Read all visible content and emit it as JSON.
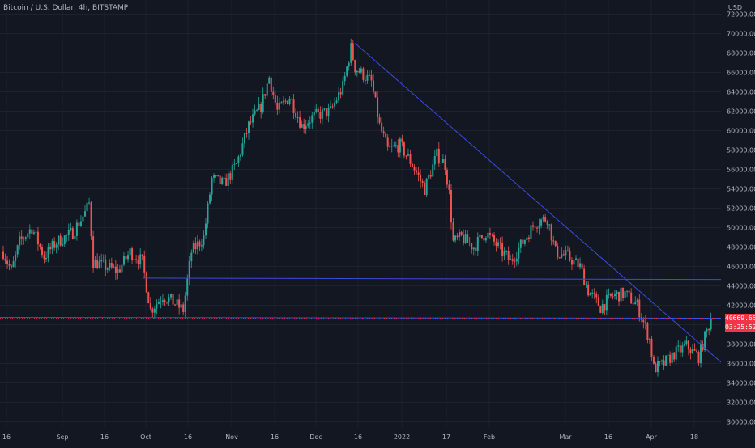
{
  "header": {
    "title": "Bitcoin / U.S. Dollar, 4h, BITSTAMP",
    "currency": "USD"
  },
  "last_price": {
    "value": "40669.65",
    "countdown": "03:25:52"
  },
  "chart_data": {
    "type": "candlestick",
    "title": "Bitcoin / U.S. Dollar, 4h, BITSTAMP",
    "xlabel": "",
    "ylabel": "",
    "ylim": [
      29500,
      72500
    ],
    "y_ticks": [
      "30000.00",
      "32000.00",
      "34000.00",
      "36000.00",
      "38000.00",
      "40000.00",
      "42000.00",
      "44000.00",
      "46000.00",
      "48000.00",
      "50000.00",
      "52000.00",
      "54000.00",
      "56000.00",
      "58000.00",
      "60000.00",
      "62000.00",
      "64000.00",
      "66000.00",
      "68000.00",
      "70000.00",
      "72000.00"
    ],
    "x_ticks": [
      "16",
      "Sep",
      "16",
      "Oct",
      "16",
      "Nov",
      "16",
      "Dec",
      "16",
      "2022",
      "17",
      "Feb",
      "Mar",
      "16",
      "Apr",
      "18"
    ],
    "price_path": [
      [
        "Aug 16",
        47500
      ],
      [
        "Aug 18",
        45500
      ],
      [
        "Aug 20",
        48500
      ],
      [
        "Aug 23",
        50000
      ],
      [
        "Aug 26",
        47000
      ],
      [
        "Aug 29",
        48500
      ],
      [
        "Sep 2",
        49500
      ],
      [
        "Sep 5",
        51500
      ],
      [
        "Sep 6",
        52500
      ],
      [
        "Sep 7",
        46500
      ],
      [
        "Sep 10",
        46000
      ],
      [
        "Sep 13",
        45500
      ],
      [
        "Sep 16",
        47500
      ],
      [
        "Sep 19",
        46500
      ],
      [
        "Sep 21",
        41500
      ],
      [
        "Sep 24",
        43000
      ],
      [
        "Sep 26",
        42500
      ],
      [
        "Sep 29",
        41500
      ],
      [
        "Oct 1",
        47500
      ],
      [
        "Oct 4",
        49000
      ],
      [
        "Oct 6",
        55000
      ],
      [
        "Oct 9",
        54500
      ],
      [
        "Oct 12",
        56500
      ],
      [
        "Oct 15",
        60500
      ],
      [
        "Oct 18",
        62500
      ],
      [
        "Oct 20",
        65500
      ],
      [
        "Oct 22",
        62000
      ],
      [
        "Oct 25",
        63500
      ],
      [
        "Oct 28",
        60500
      ],
      [
        "Oct 31",
        61500
      ],
      [
        "Nov 4",
        62000
      ],
      [
        "Nov 7",
        64500
      ],
      [
        "Nov 9",
        68500
      ],
      [
        "Nov 10",
        66500
      ],
      [
        "Nov 14",
        65000
      ],
      [
        "Nov 16",
        60500
      ],
      [
        "Nov 18",
        58000
      ],
      [
        "Nov 21",
        58500
      ],
      [
        "Nov 24",
        56500
      ],
      [
        "Nov 27",
        54000
      ],
      [
        "Nov 30",
        57500
      ],
      [
        "Dec 2",
        56500
      ],
      [
        "Dec 3",
        53500
      ],
      [
        "Dec 4",
        48500
      ],
      [
        "Dec 6",
        49000
      ],
      [
        "Dec 9",
        48000
      ],
      [
        "Dec 12",
        49500
      ],
      [
        "Dec 15",
        48000
      ],
      [
        "Dec 18",
        46500
      ],
      [
        "Dec 21",
        48500
      ],
      [
        "Dec 24",
        50500
      ],
      [
        "Dec 27",
        51000
      ],
      [
        "Dec 29",
        47500
      ],
      [
        "Jan 1",
        47000
      ],
      [
        "Jan 4",
        46000
      ],
      [
        "Jan 6",
        43500
      ],
      [
        "Jan 9",
        41800
      ],
      [
        "Jan 12",
        43000
      ],
      [
        "Jan 15",
        43200
      ],
      [
        "Jan 18",
        42000
      ],
      [
        "Jan 21",
        38500
      ],
      [
        "Jan 22",
        35500
      ],
      [
        "Jan 24",
        35800
      ],
      [
        "Jan 27",
        37000
      ],
      [
        "Jan 30",
        37800
      ],
      [
        "Feb 2",
        36700
      ],
      [
        "Feb 5",
        40669.65
      ]
    ],
    "lines": [
      {
        "kind": "trendline",
        "from": [
          "Nov 10",
          69000
        ],
        "to": [
          "Feb 10",
          35200
        ],
        "color": "#3b4bdb"
      },
      {
        "kind": "horizontal",
        "from": [
          "Sep 19",
          44800
        ],
        "to": [
          "Mar 30",
          44600
        ],
        "color": "#3b4bdb"
      },
      {
        "kind": "horizontal",
        "from": [
          "Aug 10",
          40750
        ],
        "to": [
          "Mar 9",
          40650
        ],
        "color": "#3b4bdb"
      }
    ],
    "last_value": 40669.65,
    "colors": {
      "up": "#26a69a",
      "down": "#ef5350",
      "background": "#131722",
      "grid": "#1e222d",
      "line": "#3b4bdb",
      "price_line": "#f23645"
    }
  }
}
